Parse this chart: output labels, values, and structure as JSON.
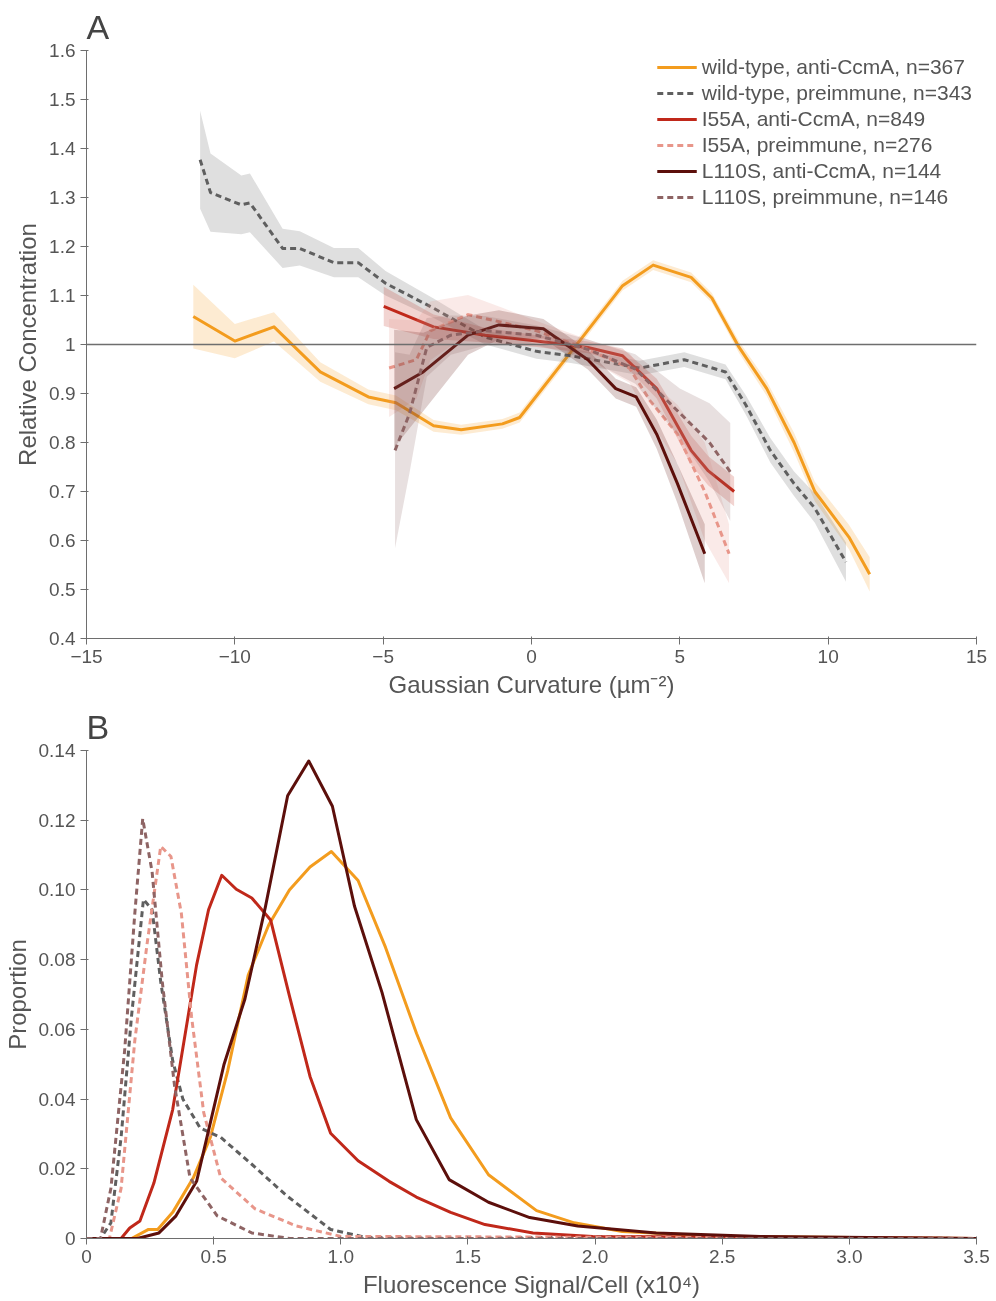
{
  "chart_data": [
    {
      "type": "line",
      "title": "A",
      "xlabel": "Gaussian Curvature (µm⁻²)",
      "ylabel": "Relative Concentration",
      "xlim": [
        -15,
        15
      ],
      "ylim": [
        0.4,
        1.6
      ],
      "xticks": [
        -15,
        -10,
        -5,
        0,
        5,
        10,
        15
      ],
      "yticks": [
        0.4,
        0.5,
        0.6,
        0.7,
        0.8,
        0.9,
        1,
        1.1,
        1.2,
        1.3,
        1.4,
        1.5,
        1.6
      ],
      "legend": "top right",
      "ref_lines": [
        {
          "axis": "y",
          "value": 1,
          "color": "#6e6e6e"
        }
      ],
      "series": [
        {
          "name": "wild-type, anti-CcmA, n=367",
          "color": "#f39c1e",
          "line_style": "solid",
          "x": [
            -11.4,
            -10.0,
            -8.68,
            -7.12,
            -5.5,
            -4.57,
            -3.3,
            -2.37,
            -0.98,
            -0.4,
            1.45,
            3.07,
            4.1,
            5.38,
            6.08,
            7.0,
            7.93,
            8.85,
            9.55,
            10.7,
            11.4
          ],
          "values": [
            1.057,
            1.007,
            1.036,
            0.944,
            0.893,
            0.881,
            0.834,
            0.826,
            0.838,
            0.851,
            0.994,
            1.12,
            1.162,
            1.137,
            1.095,
            0.994,
            0.91,
            0.8,
            0.7,
            0.607,
            0.531
          ],
          "lower": [
            0.992,
            0.972,
            1.006,
            0.924,
            0.878,
            0.866,
            0.822,
            0.816,
            0.828,
            0.841,
            0.984,
            1.11,
            1.152,
            1.127,
            1.085,
            0.982,
            0.895,
            0.78,
            0.68,
            0.582,
            0.496
          ],
          "upper": [
            1.122,
            1.042,
            1.066,
            0.964,
            0.908,
            0.896,
            0.846,
            0.836,
            0.848,
            0.861,
            1.004,
            1.13,
            1.172,
            1.147,
            1.105,
            1.006,
            0.925,
            0.82,
            0.72,
            0.632,
            0.566
          ]
        },
        {
          "name": "wild-type, preimmune, n=343",
          "color": "#5f5f5f",
          "line_style": "dashed",
          "x": [
            -11.17,
            -10.82,
            -9.78,
            -9.49,
            -8.39,
            -7.81,
            -6.66,
            -5.84,
            -4.92,
            -3.3,
            -1.56,
            0.17,
            1.33,
            3.65,
            5.15,
            6.54,
            7.23,
            8.05,
            8.85,
            9.55,
            10.6
          ],
          "values": [
            1.377,
            1.31,
            1.285,
            1.289,
            1.196,
            1.196,
            1.167,
            1.167,
            1.125,
            1.074,
            1.015,
            0.986,
            0.977,
            0.952,
            0.969,
            0.944,
            0.876,
            0.784,
            0.716,
            0.666,
            0.556
          ],
          "lower": [
            1.277,
            1.23,
            1.225,
            1.229,
            1.156,
            1.161,
            1.137,
            1.137,
            1.1,
            1.054,
            1.0,
            0.971,
            0.962,
            0.937,
            0.954,
            0.929,
            0.856,
            0.759,
            0.691,
            0.636,
            0.516
          ],
          "upper": [
            1.477,
            1.39,
            1.345,
            1.349,
            1.236,
            1.231,
            1.197,
            1.197,
            1.15,
            1.094,
            1.03,
            1.001,
            0.992,
            0.967,
            0.984,
            0.959,
            0.896,
            0.809,
            0.741,
            0.696,
            0.596
          ]
        },
        {
          "name": "I55A, anti-CcmA, n=849",
          "color": "#c0281a",
          "line_style": "solid",
          "x": [
            -4.98,
            -3.3,
            -1.56,
            0.17,
            1.9,
            3.07,
            4.22,
            5.38,
            5.96,
            6.83
          ],
          "values": [
            1.078,
            1.036,
            1.019,
            1.007,
            0.994,
            0.977,
            0.91,
            0.784,
            0.742,
            0.7
          ],
          "lower": [
            1.038,
            1.011,
            1.004,
            0.995,
            0.982,
            0.962,
            0.89,
            0.754,
            0.712,
            0.67
          ],
          "upper": [
            1.118,
            1.061,
            1.034,
            1.019,
            1.006,
            0.992,
            0.93,
            0.814,
            0.772,
            0.73
          ]
        },
        {
          "name": "I55A, preimmune, n=276",
          "color": "#e8968a",
          "line_style": "dashed",
          "x": [
            -4.8,
            -3.88,
            -3.41,
            -2.14,
            -0.98,
            0.17,
            1.9,
            3.3,
            4.0,
            4.92,
            5.84,
            6.66
          ],
          "values": [
            0.952,
            0.969,
            1.028,
            1.061,
            1.045,
            1.028,
            0.99,
            0.952,
            0.885,
            0.817,
            0.7,
            0.573
          ],
          "lower": [
            0.852,
            0.889,
            0.968,
            1.021,
            1.015,
            1.008,
            0.97,
            0.922,
            0.845,
            0.757,
            0.6,
            0.513
          ],
          "upper": [
            1.052,
            1.049,
            1.088,
            1.101,
            1.075,
            1.048,
            1.01,
            0.982,
            0.925,
            0.877,
            0.8,
            0.633
          ]
        },
        {
          "name": "L110S, anti-CcmA, n=144",
          "color": "#5c0f0b",
          "line_style": "solid",
          "x": [
            -4.63,
            -3.65,
            -2.14,
            -1.1,
            0.4,
            1.9,
            2.84,
            3.53,
            4.22,
            4.92,
            5.84
          ],
          "values": [
            0.91,
            0.944,
            1.019,
            1.04,
            1.032,
            0.969,
            0.91,
            0.893,
            0.817,
            0.716,
            0.573
          ],
          "lower": [
            0.79,
            0.864,
            0.979,
            1.01,
            1.012,
            0.949,
            0.89,
            0.873,
            0.787,
            0.676,
            0.513
          ],
          "upper": [
            1.03,
            1.024,
            1.059,
            1.07,
            1.052,
            0.989,
            0.93,
            0.913,
            0.847,
            0.756,
            0.633
          ]
        },
        {
          "name": "L110S, preimmune, n=146",
          "color": "#8e6464",
          "line_style": "dashed",
          "x": [
            -4.6,
            -4.11,
            -3.53,
            -2.72,
            -1.56,
            0.17,
            1.9,
            3.5,
            5.0,
            6.0,
            6.7
          ],
          "values": [
            0.784,
            0.859,
            0.994,
            1.019,
            1.028,
            1.019,
            0.99,
            0.95,
            0.86,
            0.8,
            0.74
          ],
          "lower": [
            0.584,
            0.739,
            0.934,
            0.979,
            0.998,
            0.999,
            0.97,
            0.92,
            0.81,
            0.72,
            0.64
          ],
          "upper": [
            0.984,
            0.979,
            1.054,
            1.059,
            1.058,
            1.039,
            1.01,
            0.98,
            0.91,
            0.88,
            0.84
          ]
        }
      ]
    },
    {
      "type": "line",
      "title": "B",
      "xlabel": "Fluorescence Signal/Cell (x10⁴)",
      "ylabel": "Proportion",
      "xlim": [
        0,
        3.5
      ],
      "ylim": [
        0,
        0.14
      ],
      "xticks": [
        0,
        0.5,
        {
          "value": 1,
          "label": "1.0"
        },
        1.5,
        {
          "value": 2,
          "label": "2.0"
        },
        2.5,
        {
          "value": 3,
          "label": "3.0"
        },
        3.5
      ],
      "yticks": [
        0,
        0.02,
        0.04,
        0.06,
        0.08,
        {
          "value": 0.1,
          "label": "0.10"
        },
        0.12,
        0.14
      ],
      "series": [
        {
          "color": "#f39c1e",
          "line_style": "solid",
          "x": [
            0,
            0.177,
            0.244,
            0.28,
            0.339,
            0.42,
            0.487,
            0.555,
            0.636,
            0.717,
            0.798,
            0.879,
            0.963,
            1.068,
            1.176,
            1.298,
            1.432,
            1.581,
            1.77,
            1.918,
            2.107,
            2.5,
            3.5
          ],
          "values": [
            0,
            0,
            0.0026,
            0.0026,
            0.0075,
            0.0174,
            0.029,
            0.048,
            0.0756,
            0.09,
            0.1,
            0.1066,
            0.111,
            0.1027,
            0.0835,
            0.0588,
            0.0346,
            0.0183,
            0.008,
            0.0045,
            0.002,
            0.0006,
            0
          ]
        },
        {
          "color": "#5f5f5f",
          "line_style": "dashed",
          "x": [
            0,
            0.055,
            0.096,
            0.136,
            0.177,
            0.224,
            0.258,
            0.292,
            0.339,
            0.379,
            0.447,
            0.528,
            0.65,
            0.785,
            0.96,
            1.1,
            1.5,
            2.0,
            3.5
          ],
          "values": [
            0,
            0,
            0.0045,
            0.029,
            0.0637,
            0.0973,
            0.0943,
            0.0736,
            0.051,
            0.04,
            0.0317,
            0.029,
            0.0213,
            0.0124,
            0.0026,
            0.0003,
            0,
            0.0005,
            0
          ]
        },
        {
          "color": "#c0281a",
          "line_style": "solid",
          "x": [
            0,
            0.136,
            0.17,
            0.21,
            0.265,
            0.339,
            0.433,
            0.48,
            0.532,
            0.589,
            0.65,
            0.724,
            0.798,
            0.879,
            0.96,
            1.068,
            1.19,
            1.297,
            1.432,
            1.567,
            1.756,
            1.99,
            3.5
          ],
          "values": [
            0,
            0,
            0.003,
            0.005,
            0.0159,
            0.037,
            0.0785,
            0.0943,
            0.1042,
            0.1002,
            0.0977,
            0.0914,
            0.0696,
            0.0465,
            0.0302,
            0.0223,
            0.0164,
            0.0119,
            0.0075,
            0.004,
            0.0016,
            0.0006,
            0
          ]
        },
        {
          "color": "#e8968a",
          "line_style": "dashed",
          "x": [
            0,
            0.09,
            0.136,
            0.19,
            0.238,
            0.292,
            0.332,
            0.373,
            0.413,
            0.461,
            0.528,
            0.663,
            0.825,
            1.0,
            3.5
          ],
          "values": [
            0,
            0,
            0.0144,
            0.0568,
            0.0844,
            0.1125,
            0.1096,
            0.0933,
            0.0637,
            0.0361,
            0.0174,
            0.0085,
            0.0036,
            0.0006,
            0
          ]
        },
        {
          "color": "#5c0f0b",
          "line_style": "solid",
          "x": [
            0,
            0.2,
            0.285,
            0.352,
            0.433,
            0.541,
            0.623,
            0.704,
            0.791,
            0.874,
            0.967,
            1.054,
            1.162,
            1.297,
            1.426,
            1.581,
            1.743,
            1.932,
            2.24,
            2.65,
            3.5
          ],
          "values": [
            0,
            0,
            0.0016,
            0.0065,
            0.0164,
            0.05,
            0.0687,
            0.0953,
            0.127,
            0.137,
            0.124,
            0.0953,
            0.0706,
            0.0341,
            0.0169,
            0.0104,
            0.006,
            0.0036,
            0.0016,
            0.0006,
            0
          ]
        },
        {
          "color": "#8e6464",
          "line_style": "dashed",
          "x": [
            0,
            0.055,
            0.096,
            0.15,
            0.19,
            0.221,
            0.258,
            0.298,
            0.346,
            0.407,
            0.514,
            0.65,
            0.8,
            3.5
          ],
          "values": [
            0,
            0,
            0.0144,
            0.0539,
            0.0933,
            0.1204,
            0.1052,
            0.0736,
            0.044,
            0.0174,
            0.0065,
            0.0016,
            0,
            0
          ]
        }
      ]
    }
  ]
}
